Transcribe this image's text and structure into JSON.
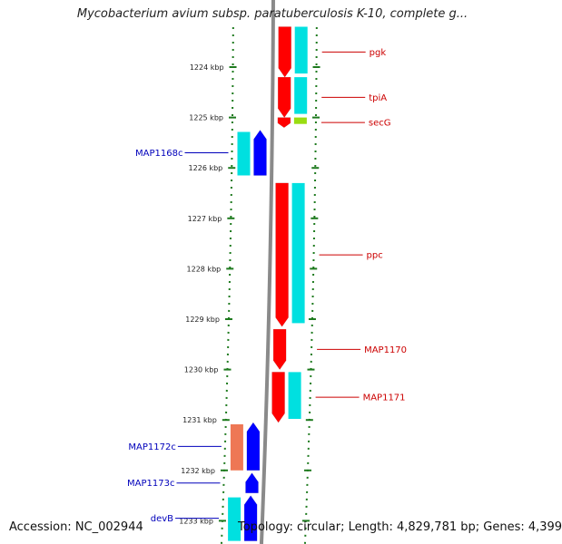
{
  "title": "Mycobacterium avium subsp. paratuberculosis K-10, complete g...",
  "footer": {
    "accession": "Accession: NC_002944",
    "topology": "Topology: circular; Length: 4,829,781 bp; Genes: 4,399"
  },
  "colors": {
    "forward": "#ff0000",
    "reverse": "#0000ff",
    "forward_cds": "#00e0e0",
    "reverse_cds": "#00e0e0",
    "other": "#99dd11",
    "forward_label": "#cc0000",
    "reverse_label": "#0000bb",
    "backbone": "#8a8a8a",
    "ticks": "#1e7a1e"
  },
  "chart_data": {
    "type": "genome-map",
    "title": "Mycobacterium avium subsp. paratuberculosis K-10, complete g...",
    "axis_unit": "kbp",
    "visible_range_kbp": [
      1223.2,
      1233.4
    ],
    "ticks": [
      {
        "kbp": 1224,
        "label": "1224 kbp"
      },
      {
        "kbp": 1225,
        "label": "1225 kbp"
      },
      {
        "kbp": 1226,
        "label": "1226 kbp"
      },
      {
        "kbp": 1227,
        "label": "1227 kbp"
      },
      {
        "kbp": 1228,
        "label": "1228 kbp"
      },
      {
        "kbp": 1229,
        "label": "1229 kbp"
      },
      {
        "kbp": 1230,
        "label": "1230 kbp"
      },
      {
        "kbp": 1231,
        "label": "1231 kbp"
      },
      {
        "kbp": 1232,
        "label": "1232 kbp"
      },
      {
        "kbp": 1233,
        "label": "1233 kbp"
      }
    ],
    "genes": [
      {
        "name": "pgk",
        "strand": "forward",
        "start_kbp": 1223.2,
        "end_kbp": 1224.2,
        "color": "#ff0000",
        "cds_color": "#00e0e0"
      },
      {
        "name": "tpiA",
        "strand": "forward",
        "start_kbp": 1224.2,
        "end_kbp": 1225.0,
        "color": "#ff0000",
        "cds_color": "#00e0e0"
      },
      {
        "name": "secG",
        "strand": "forward",
        "start_kbp": 1225.0,
        "end_kbp": 1225.2,
        "color": "#ff0000",
        "cds_color": "#99dd11"
      },
      {
        "name": "MAP1168c",
        "strand": "reverse",
        "start_kbp": 1225.25,
        "end_kbp": 1226.15,
        "color": "#0000ff",
        "cds_color": "#00e0e0"
      },
      {
        "name": "ppc",
        "strand": "forward",
        "start_kbp": 1226.3,
        "end_kbp": 1229.15,
        "color": "#ff0000",
        "cds_color": "#00e0e0"
      },
      {
        "name": "MAP1170",
        "strand": "forward",
        "start_kbp": 1229.2,
        "end_kbp": 1230.0,
        "color": "#ff0000",
        "cds_color": null
      },
      {
        "name": "MAP1171",
        "strand": "forward",
        "start_kbp": 1230.05,
        "end_kbp": 1231.05,
        "color": "#ff0000",
        "cds_color": "#00e0e0"
      },
      {
        "name": "MAP1172c",
        "strand": "reverse",
        "start_kbp": 1231.05,
        "end_kbp": 1232.0,
        "color": "#0000ff",
        "cds_color": "#ee7755"
      },
      {
        "name": "MAP1173c",
        "strand": "reverse",
        "start_kbp": 1232.05,
        "end_kbp": 1232.45,
        "color": "#0000ff",
        "cds_color": null
      },
      {
        "name": "devB",
        "strand": "reverse",
        "start_kbp": 1232.5,
        "end_kbp": 1233.4,
        "color": "#0000ff",
        "cds_color": "#00e0e0"
      }
    ]
  }
}
